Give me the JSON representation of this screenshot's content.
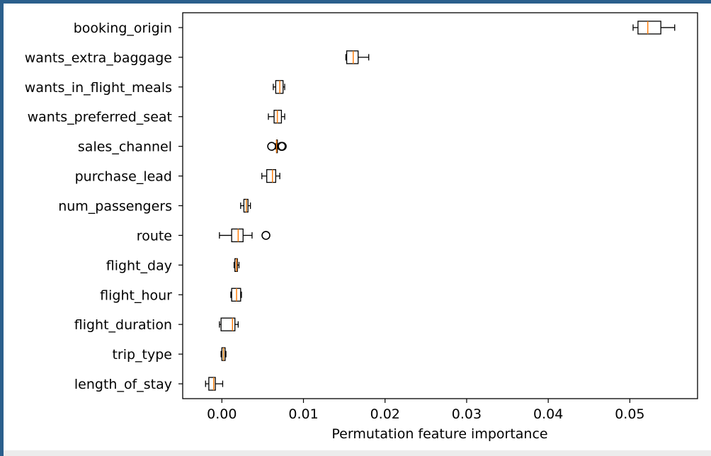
{
  "colors": {
    "frame_border": "#2b5f8c",
    "box_edge": "#000000",
    "median": "#ff7f0e",
    "background": "#ffffff"
  },
  "chart_data": {
    "type": "boxplot",
    "orientation": "horizontal",
    "title": "",
    "xlabel": "Permutation feature importance",
    "ylabel": "",
    "xlim": [
      -0.0048,
      0.0583
    ],
    "xticks": [
      0.0,
      0.01,
      0.02,
      0.03,
      0.04,
      0.05
    ],
    "xtick_labels": [
      "0.00",
      "0.01",
      "0.02",
      "0.03",
      "0.04",
      "0.05"
    ],
    "grid": false,
    "categories": [
      "booking_origin",
      "wants_extra_baggage",
      "wants_in_flight_meals",
      "wants_preferred_seat",
      "sales_channel",
      "purchase_lead",
      "num_passengers",
      "route",
      "flight_day",
      "flight_hour",
      "flight_duration",
      "trip_type",
      "length_of_stay"
    ],
    "boxes": [
      {
        "label": "booking_origin",
        "whislo": 0.0504,
        "q1": 0.051,
        "med": 0.0522,
        "q3": 0.0538,
        "whishi": 0.0555,
        "fliers": []
      },
      {
        "label": "wants_extra_baggage",
        "whislo": 0.0152,
        "q1": 0.0153,
        "med": 0.0161,
        "q3": 0.0167,
        "whishi": 0.018,
        "fliers": []
      },
      {
        "label": "wants_in_flight_meals",
        "whislo": 0.0063,
        "q1": 0.0066,
        "med": 0.0071,
        "q3": 0.0075,
        "whishi": 0.0077,
        "fliers": []
      },
      {
        "label": "wants_preferred_seat",
        "whislo": 0.0057,
        "q1": 0.0064,
        "med": 0.0068,
        "q3": 0.0073,
        "whishi": 0.0077,
        "fliers": []
      },
      {
        "label": "sales_channel",
        "whislo": 0.0066,
        "q1": 0.0067,
        "med": 0.0067,
        "q3": 0.0068,
        "whishi": 0.0068,
        "fliers": [
          0.0061,
          0.0073,
          0.0074
        ]
      },
      {
        "label": "purchase_lead",
        "whislo": 0.0049,
        "q1": 0.0055,
        "med": 0.0062,
        "q3": 0.0066,
        "whishi": 0.0071,
        "fliers": []
      },
      {
        "label": "num_passengers",
        "whislo": 0.0023,
        "q1": 0.0027,
        "med": 0.003,
        "q3": 0.0032,
        "whishi": 0.0035,
        "fliers": []
      },
      {
        "label": "route",
        "whislo": -0.0003,
        "q1": 0.0012,
        "med": 0.002,
        "q3": 0.0026,
        "whishi": 0.0037,
        "fliers": [
          0.0054
        ]
      },
      {
        "label": "flight_day",
        "whislo": 0.0015,
        "q1": 0.0016,
        "med": 0.0018,
        "q3": 0.0019,
        "whishi": 0.0021,
        "fliers": []
      },
      {
        "label": "flight_hour",
        "whislo": 0.0011,
        "q1": 0.0012,
        "med": 0.0018,
        "q3": 0.0023,
        "whishi": 0.0024,
        "fliers": []
      },
      {
        "label": "flight_duration",
        "whislo": -0.0003,
        "q1": -0.0001,
        "med": 0.0013,
        "q3": 0.0016,
        "whishi": 0.002,
        "fliers": []
      },
      {
        "label": "trip_type",
        "whislo": -0.0001,
        "q1": 0.0,
        "med": 0.0002,
        "q3": 0.0004,
        "whishi": 0.0005,
        "fliers": []
      },
      {
        "label": "length_of_stay",
        "whislo": -0.002,
        "q1": -0.0016,
        "med": -0.001,
        "q3": -0.0008,
        "whishi": 0.0001,
        "fliers": []
      }
    ]
  }
}
